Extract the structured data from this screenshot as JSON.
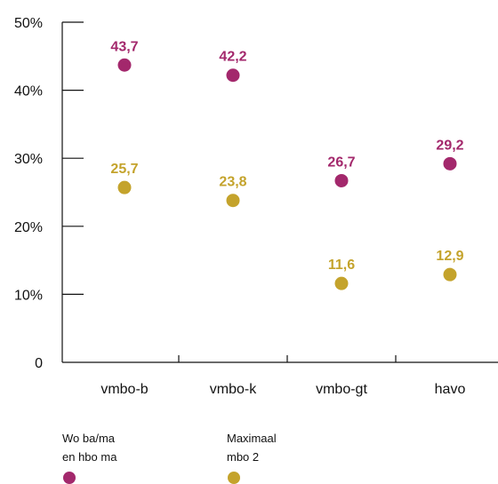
{
  "chart_data": {
    "type": "scatter",
    "categories": [
      "vmbo-b",
      "vmbo-k",
      "vmbo-gt",
      "havo"
    ],
    "ylim": [
      0,
      50
    ],
    "yticks": [
      {
        "value": 0,
        "label": "0"
      },
      {
        "value": 10,
        "label": "10%"
      },
      {
        "value": 20,
        "label": "20%"
      },
      {
        "value": 30,
        "label": "30%"
      },
      {
        "value": 40,
        "label": "40%"
      },
      {
        "value": 50,
        "label": "50%"
      }
    ],
    "series": [
      {
        "name_lines": [
          "Wo ba/ma",
          "en hbo ma"
        ],
        "color": "#a3286c",
        "values": [
          43.7,
          42.2,
          26.7,
          29.2
        ],
        "labels": [
          "43,7",
          "42,2",
          "26,7",
          "29,2"
        ]
      },
      {
        "name_lines": [
          "Maximaal",
          "mbo 2"
        ],
        "color": "#c4a32c",
        "values": [
          25.7,
          23.8,
          11.6,
          12.9
        ],
        "labels": [
          "25,7",
          "23,8",
          "11,6",
          "12,9"
        ]
      }
    ],
    "grid": false,
    "legend_position": "bottom-left"
  }
}
